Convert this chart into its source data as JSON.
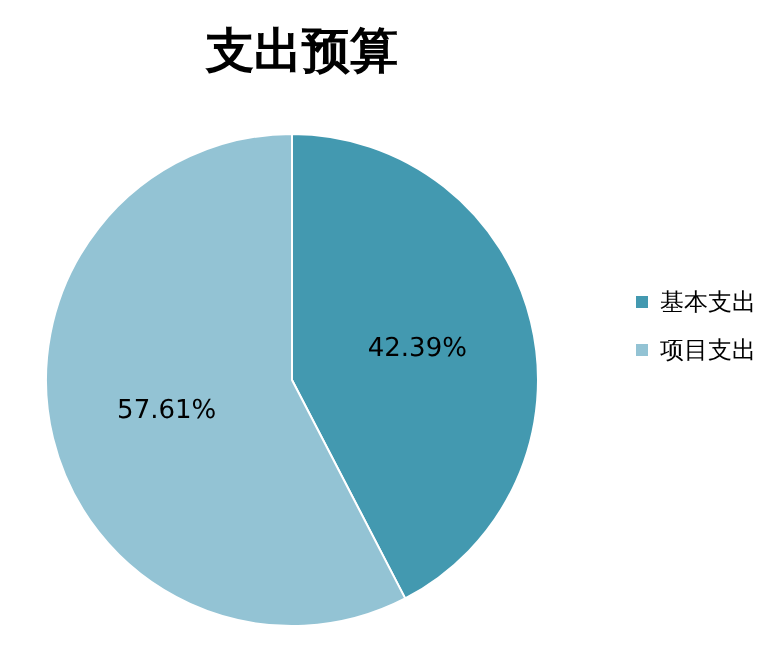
{
  "chart_data": {
    "type": "pie",
    "title": "支出预算",
    "categories": [
      "基本支出",
      "项目支出"
    ],
    "values": [
      42.39,
      57.61
    ],
    "value_labels": [
      "42.39%",
      "57.61%"
    ],
    "colors": [
      "#4399b0",
      "#93c3d4"
    ],
    "legend": "right"
  }
}
